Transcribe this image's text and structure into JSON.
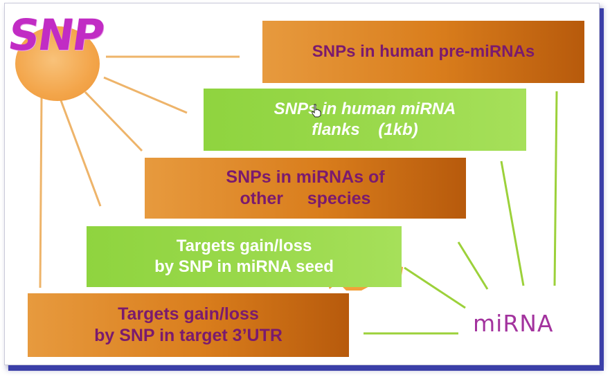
{
  "diagram": {
    "hub_left": "SNP",
    "hub_right": "miRNA",
    "boxes": [
      {
        "id": "pre-mirnas",
        "text": "SNPs in human pre-miRNAs",
        "style": "orange"
      },
      {
        "id": "flanks",
        "text": "SNPs in human miRNA\nflanks    (1kb)",
        "style": "green"
      },
      {
        "id": "other-species",
        "text": "SNPs in miRNAs of\nother     species",
        "style": "orange"
      },
      {
        "id": "seed",
        "text": "Targets gain/loss\nby SNP in miRNA seed",
        "style": "green"
      },
      {
        "id": "target-utr",
        "text": "Targets gain/loss\nby SNP in target 3’UTR",
        "style": "orange"
      }
    ]
  },
  "colors": {
    "orange_start": "#e79a3e",
    "orange_end": "#b75a0c",
    "green": "#9ad94c",
    "purple_text": "#7a1a6e",
    "snp_text": "#c12cc4",
    "mirna_text": "#a3339e",
    "snp_lines": "#eeb46a",
    "mirna_lines": "#9cd13a"
  },
  "icons": {
    "cursor": "hand-pointer-icon"
  }
}
